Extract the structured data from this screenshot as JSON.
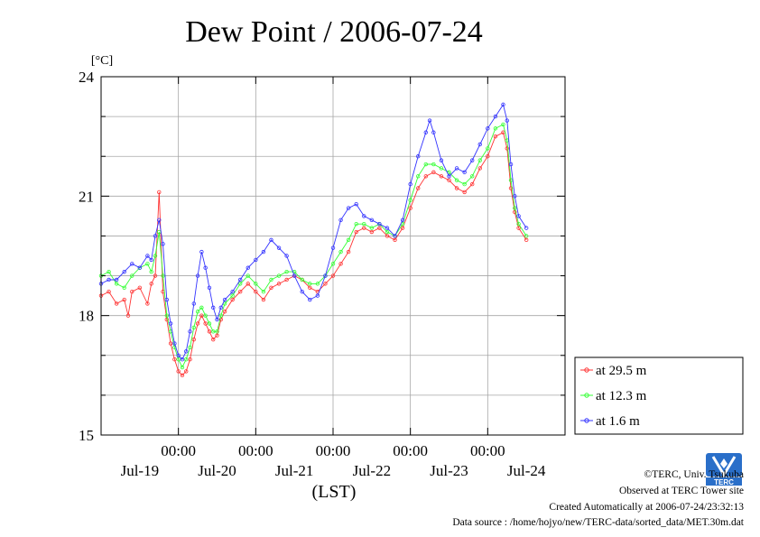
{
  "colors": {
    "series_29_5": "#ff3333",
    "series_12_3": "#33ff33",
    "series_1_6": "#3333ff",
    "grid": "#a6a6a6",
    "logo": "#2a6fc9"
  },
  "chart_data": {
    "type": "line",
    "title": "Dew Point / 2006-07-24",
    "ylabel": "[°C]",
    "xlabel": "(LST)",
    "ylim": [
      15,
      24
    ],
    "yticks": [
      15,
      18,
      21,
      24
    ],
    "x_range_hours": [
      -20,
      100
    ],
    "xticks_time": [
      "00:00",
      "00:00",
      "00:00",
      "00:00",
      "00:00"
    ],
    "xtick_hours": [
      0,
      20,
      40,
      60,
      80
    ],
    "xticks_date": [
      "Jul-19",
      "Jul-20",
      "Jul-21",
      "Jul-22",
      "Jul-23",
      "Jul-24"
    ],
    "xdate_hours": [
      -10,
      10,
      30,
      50,
      70,
      90
    ],
    "grid": true,
    "legend_position": "right",
    "series": [
      {
        "name": "at 29.5 m",
        "color": "#ff3333",
        "points": [
          [
            -20,
            18.5
          ],
          [
            -18,
            18.6
          ],
          [
            -16,
            18.3
          ],
          [
            -14,
            18.4
          ],
          [
            -13,
            18.0
          ],
          [
            -12,
            18.6
          ],
          [
            -10,
            18.7
          ],
          [
            -8,
            18.3
          ],
          [
            -7,
            18.8
          ],
          [
            -6,
            19.0
          ],
          [
            -5,
            21.1
          ],
          [
            -4,
            18.6
          ],
          [
            -3,
            17.9
          ],
          [
            -2,
            17.3
          ],
          [
            -1,
            16.9
          ],
          [
            0,
            16.6
          ],
          [
            1,
            16.5
          ],
          [
            2,
            16.6
          ],
          [
            3,
            16.9
          ],
          [
            4,
            17.4
          ],
          [
            5,
            17.8
          ],
          [
            6,
            18.0
          ],
          [
            7,
            17.8
          ],
          [
            8,
            17.6
          ],
          [
            9,
            17.4
          ],
          [
            10,
            17.5
          ],
          [
            11,
            17.9
          ],
          [
            12,
            18.1
          ],
          [
            14,
            18.4
          ],
          [
            16,
            18.6
          ],
          [
            18,
            18.8
          ],
          [
            20,
            18.6
          ],
          [
            22,
            18.4
          ],
          [
            24,
            18.7
          ],
          [
            26,
            18.8
          ],
          [
            28,
            18.9
          ],
          [
            30,
            19.0
          ],
          [
            32,
            18.9
          ],
          [
            34,
            18.7
          ],
          [
            36,
            18.6
          ],
          [
            38,
            18.8
          ],
          [
            40,
            19.0
          ],
          [
            42,
            19.3
          ],
          [
            44,
            19.6
          ],
          [
            46,
            20.1
          ],
          [
            48,
            20.2
          ],
          [
            50,
            20.1
          ],
          [
            52,
            20.2
          ],
          [
            54,
            20.0
          ],
          [
            56,
            19.9
          ],
          [
            58,
            20.2
          ],
          [
            60,
            20.7
          ],
          [
            62,
            21.2
          ],
          [
            64,
            21.5
          ],
          [
            66,
            21.6
          ],
          [
            68,
            21.5
          ],
          [
            70,
            21.4
          ],
          [
            72,
            21.2
          ],
          [
            74,
            21.1
          ],
          [
            76,
            21.3
          ],
          [
            78,
            21.7
          ],
          [
            80,
            22.0
          ],
          [
            82,
            22.5
          ],
          [
            84,
            22.6
          ],
          [
            85,
            22.2
          ],
          [
            86,
            21.2
          ],
          [
            87,
            20.6
          ],
          [
            88,
            20.2
          ],
          [
            90,
            19.9
          ]
        ]
      },
      {
        "name": "at 12.3 m",
        "color": "#33ff33",
        "points": [
          [
            -20,
            19.0
          ],
          [
            -18,
            19.1
          ],
          [
            -16,
            18.8
          ],
          [
            -14,
            18.7
          ],
          [
            -12,
            19.0
          ],
          [
            -10,
            19.2
          ],
          [
            -8,
            19.3
          ],
          [
            -7,
            19.1
          ],
          [
            -6,
            19.5
          ],
          [
            -5,
            20.1
          ],
          [
            -4,
            19.0
          ],
          [
            -3,
            18.0
          ],
          [
            -2,
            17.6
          ],
          [
            -1,
            17.2
          ],
          [
            0,
            16.9
          ],
          [
            1,
            16.7
          ],
          [
            2,
            16.9
          ],
          [
            3,
            17.2
          ],
          [
            4,
            17.7
          ],
          [
            5,
            18.1
          ],
          [
            6,
            18.2
          ],
          [
            7,
            18.0
          ],
          [
            8,
            17.8
          ],
          [
            9,
            17.6
          ],
          [
            10,
            17.6
          ],
          [
            11,
            18.0
          ],
          [
            12,
            18.3
          ],
          [
            14,
            18.5
          ],
          [
            16,
            18.8
          ],
          [
            18,
            19.0
          ],
          [
            20,
            18.8
          ],
          [
            22,
            18.6
          ],
          [
            24,
            18.9
          ],
          [
            26,
            19.0
          ],
          [
            28,
            19.1
          ],
          [
            30,
            19.1
          ],
          [
            32,
            18.9
          ],
          [
            34,
            18.8
          ],
          [
            36,
            18.8
          ],
          [
            38,
            19.0
          ],
          [
            40,
            19.3
          ],
          [
            42,
            19.6
          ],
          [
            44,
            19.9
          ],
          [
            46,
            20.3
          ],
          [
            48,
            20.3
          ],
          [
            50,
            20.2
          ],
          [
            52,
            20.3
          ],
          [
            54,
            20.1
          ],
          [
            56,
            20.0
          ],
          [
            58,
            20.3
          ],
          [
            60,
            20.9
          ],
          [
            62,
            21.5
          ],
          [
            64,
            21.8
          ],
          [
            66,
            21.8
          ],
          [
            68,
            21.7
          ],
          [
            70,
            21.6
          ],
          [
            72,
            21.4
          ],
          [
            74,
            21.3
          ],
          [
            76,
            21.5
          ],
          [
            78,
            21.9
          ],
          [
            80,
            22.2
          ],
          [
            82,
            22.7
          ],
          [
            84,
            22.8
          ],
          [
            85,
            22.4
          ],
          [
            86,
            21.4
          ],
          [
            87,
            20.7
          ],
          [
            88,
            20.3
          ],
          [
            90,
            20.0
          ]
        ]
      },
      {
        "name": "at 1.6 m",
        "color": "#3333ff",
        "points": [
          [
            -20,
            18.8
          ],
          [
            -18,
            18.9
          ],
          [
            -16,
            18.9
          ],
          [
            -14,
            19.1
          ],
          [
            -12,
            19.3
          ],
          [
            -10,
            19.2
          ],
          [
            -8,
            19.5
          ],
          [
            -7,
            19.4
          ],
          [
            -6,
            20.0
          ],
          [
            -5,
            20.4
          ],
          [
            -4,
            19.8
          ],
          [
            -3,
            18.4
          ],
          [
            -2,
            17.8
          ],
          [
            -1,
            17.3
          ],
          [
            0,
            17.0
          ],
          [
            1,
            16.9
          ],
          [
            2,
            17.1
          ],
          [
            3,
            17.6
          ],
          [
            4,
            18.3
          ],
          [
            5,
            19.0
          ],
          [
            6,
            19.6
          ],
          [
            7,
            19.2
          ],
          [
            8,
            18.7
          ],
          [
            9,
            18.2
          ],
          [
            10,
            17.9
          ],
          [
            11,
            18.2
          ],
          [
            12,
            18.4
          ],
          [
            14,
            18.6
          ],
          [
            16,
            18.9
          ],
          [
            18,
            19.2
          ],
          [
            20,
            19.4
          ],
          [
            22,
            19.6
          ],
          [
            24,
            19.9
          ],
          [
            26,
            19.7
          ],
          [
            28,
            19.5
          ],
          [
            30,
            19.0
          ],
          [
            32,
            18.6
          ],
          [
            34,
            18.4
          ],
          [
            36,
            18.5
          ],
          [
            38,
            19.0
          ],
          [
            40,
            19.7
          ],
          [
            42,
            20.4
          ],
          [
            44,
            20.7
          ],
          [
            46,
            20.8
          ],
          [
            48,
            20.5
          ],
          [
            50,
            20.4
          ],
          [
            52,
            20.3
          ],
          [
            54,
            20.2
          ],
          [
            56,
            20.0
          ],
          [
            58,
            20.4
          ],
          [
            60,
            21.3
          ],
          [
            62,
            22.0
          ],
          [
            64,
            22.6
          ],
          [
            65,
            22.9
          ],
          [
            66,
            22.6
          ],
          [
            68,
            21.9
          ],
          [
            70,
            21.5
          ],
          [
            72,
            21.7
          ],
          [
            74,
            21.6
          ],
          [
            76,
            21.9
          ],
          [
            78,
            22.3
          ],
          [
            80,
            22.7
          ],
          [
            82,
            23.0
          ],
          [
            84,
            23.3
          ],
          [
            85,
            22.9
          ],
          [
            86,
            21.8
          ],
          [
            87,
            21.0
          ],
          [
            88,
            20.5
          ],
          [
            90,
            20.2
          ]
        ]
      }
    ]
  },
  "footer": {
    "copyright": "©TERC, Univ. Tsukuba",
    "observed": "Observed at TERC Tower site",
    "created": "Created Automatically at 2006-07-24/23:32:13",
    "source": "Data source : /home/hojyo/new/TERC-data/sorted_data/MET.30m.dat"
  },
  "logo": {
    "text": "TERC",
    "icon": "terc-tower-logo-icon"
  }
}
